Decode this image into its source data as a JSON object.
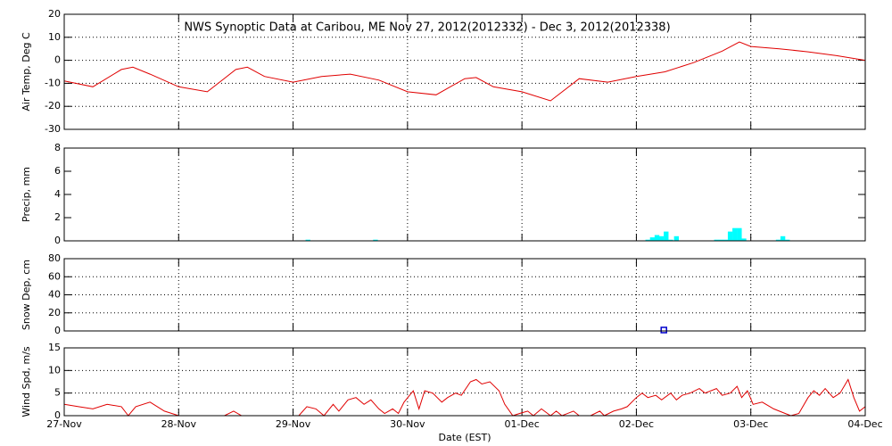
{
  "chart_data": [
    {
      "type": "line",
      "title": "NWS Synoptic Data at Caribou, ME   Nov 27, 2012(2012332) - Dec  3, 2012(2012338)",
      "ylabel": "Air Temp, Deg C",
      "color": "#e00000",
      "ylim": [
        -30,
        20
      ],
      "yticks": [
        -30,
        -20,
        -10,
        0,
        10,
        20
      ],
      "ygrid": true,
      "x": [
        0,
        0.25,
        0.5,
        0.6,
        0.75,
        1,
        1.25,
        1.5,
        1.6,
        1.75,
        2,
        2.25,
        2.5,
        2.75,
        3,
        3.25,
        3.5,
        3.6,
        3.75,
        4,
        4.25,
        4.5,
        4.75,
        5,
        5.25,
        5.5,
        5.75,
        5.9,
        6,
        6.25,
        6.5,
        6.75,
        7
      ],
      "values": [
        -9,
        -11.5,
        -4,
        -3,
        -6,
        -11.5,
        -13.7,
        -4,
        -3,
        -7,
        -9.5,
        -7,
        -6,
        -8.6,
        -13.7,
        -15,
        -8,
        -7.5,
        -11.5,
        -13.7,
        -17.6,
        -8,
        -9.5,
        -7,
        -5,
        -1,
        4,
        8,
        6,
        5,
        3.7,
        2,
        0
      ]
    },
    {
      "type": "bar",
      "ylabel": "Precip, mm",
      "color": "#00ffff",
      "ylim": [
        0,
        8
      ],
      "yticks": [
        0,
        2,
        4,
        6,
        8
      ],
      "ygrid": false,
      "x": [
        2.13,
        2.72,
        5.1,
        5.14,
        5.18,
        5.22,
        5.26,
        5.3,
        5.35,
        5.7,
        5.74,
        5.78,
        5.82,
        5.86,
        5.9,
        5.94,
        6.24,
        6.28,
        6.32
      ],
      "values": [
        0.1,
        0.1,
        0.1,
        0.3,
        0.5,
        0.4,
        0.8,
        0.1,
        0.4,
        0.1,
        0.1,
        0.1,
        0.8,
        1.1,
        1.1,
        0.2,
        0.1,
        0.4,
        0.1
      ]
    },
    {
      "type": "scatter",
      "ylabel": "Snow Dep, cm",
      "color": "#0000cc",
      "ylim": [
        0,
        80
      ],
      "yticks": [
        0,
        20,
        40,
        60,
        80
      ],
      "ygrid": true,
      "x": [
        5.24
      ],
      "values": [
        1
      ]
    },
    {
      "type": "line",
      "ylabel": "Wind Spd, m/s",
      "color": "#e00000",
      "ylim": [
        0,
        15
      ],
      "yticks": [
        0,
        5,
        10,
        15
      ],
      "ygrid": true,
      "xlabel": "Date (EST)",
      "xlim": [
        0,
        7
      ],
      "xticks": [
        {
          "value": 0,
          "label": "27-Nov"
        },
        {
          "value": 1,
          "label": "28-Nov"
        },
        {
          "value": 2,
          "label": "29-Nov"
        },
        {
          "value": 3,
          "label": "30-Nov"
        },
        {
          "value": 4,
          "label": "01-Dec"
        },
        {
          "value": 5,
          "label": "02-Dec"
        },
        {
          "value": 6,
          "label": "03-Dec"
        },
        {
          "value": 7,
          "label": "04-Dec"
        }
      ],
      "x": [
        0,
        0.125,
        0.25,
        0.375,
        0.5,
        0.56,
        0.625,
        0.75,
        0.875,
        1,
        1.125,
        1.4,
        1.48,
        1.55,
        2.05,
        2.12,
        2.2,
        2.27,
        2.35,
        2.4,
        2.48,
        2.55,
        2.62,
        2.68,
        2.75,
        2.8,
        2.87,
        2.92,
        2.97,
        3.05,
        3.1,
        3.15,
        3.22,
        3.3,
        3.35,
        3.42,
        3.47,
        3.55,
        3.6,
        3.65,
        3.72,
        3.8,
        3.85,
        3.92,
        3.98,
        4.05,
        4.1,
        4.17,
        4.25,
        4.3,
        4.35,
        4.45,
        4.5,
        4.6,
        4.68,
        4.72,
        4.8,
        4.87,
        4.92,
        5,
        5.05,
        5.1,
        5.17,
        5.22,
        5.3,
        5.35,
        5.4,
        5.47,
        5.55,
        5.6,
        5.7,
        5.75,
        5.82,
        5.88,
        5.92,
        5.97,
        6.02,
        6.1,
        6.2,
        6.3,
        6.35,
        6.42,
        6.5,
        6.55,
        6.6,
        6.65,
        6.72,
        6.78,
        6.85,
        6.9,
        6.95,
        7
      ],
      "values": [
        2.5,
        2,
        1.5,
        2.5,
        2,
        0,
        2,
        3,
        1,
        0,
        0,
        0,
        1,
        0,
        0,
        2,
        1.5,
        0,
        2.5,
        1,
        3.5,
        4,
        2.5,
        3.5,
        1.5,
        0.5,
        1.5,
        0.5,
        3,
        5.5,
        1.5,
        5.5,
        5,
        3,
        4,
        5,
        4.5,
        7.5,
        8,
        7,
        7.5,
        5.5,
        2.5,
        0,
        0.5,
        1,
        0,
        1.5,
        0,
        1,
        0,
        1,
        0,
        0,
        1,
        0,
        1,
        1.5,
        2,
        4,
        5,
        4,
        4.5,
        3.5,
        5,
        3.5,
        4.5,
        5,
        6,
        5,
        6,
        4.5,
        5,
        6.5,
        4,
        5.5,
        2.5,
        3,
        1.5,
        0.5,
        0,
        0.5,
        4,
        5.5,
        4.5,
        6,
        4,
        5,
        8,
        4,
        1,
        2
      ]
    }
  ]
}
